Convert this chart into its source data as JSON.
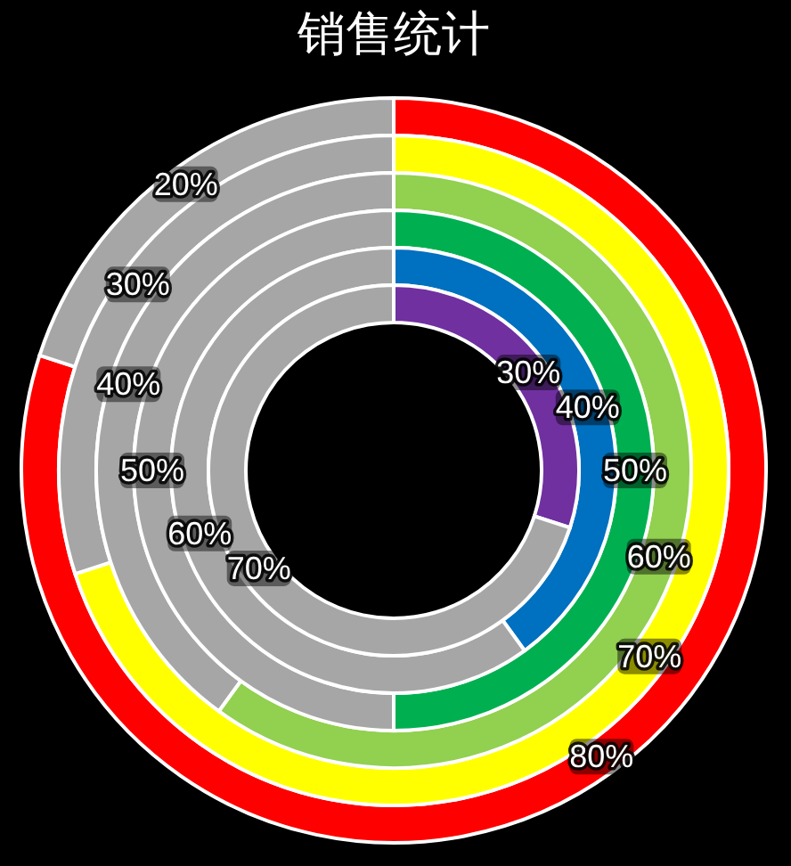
{
  "chart_data": [
    {
      "type": "donut",
      "title": "销售统计",
      "categories": [
        null,
        null
      ],
      "values": [
        80,
        20
      ],
      "colors": [
        "#ff0000",
        "#a6a6a6"
      ],
      "value_labels": [
        "80%",
        "20%"
      ]
    },
    {
      "type": "donut",
      "categories": [
        null,
        null
      ],
      "values": [
        70,
        30
      ],
      "colors": [
        "#ffff00",
        "#a6a6a6"
      ],
      "value_labels": [
        "70%",
        "30%"
      ]
    },
    {
      "type": "donut",
      "categories": [
        null,
        null
      ],
      "values": [
        60,
        40
      ],
      "colors": [
        "#92d050",
        "#a6a6a6"
      ],
      "value_labels": [
        "60%",
        "40%"
      ]
    },
    {
      "type": "donut",
      "categories": [
        null,
        null
      ],
      "values": [
        50,
        50
      ],
      "colors": [
        "#00b050",
        "#a6a6a6"
      ],
      "value_labels": [
        "50%",
        "50%"
      ]
    },
    {
      "type": "donut",
      "categories": [
        null,
        null
      ],
      "values": [
        40,
        60
      ],
      "colors": [
        "#0070c0",
        "#a6a6a6"
      ],
      "value_labels": [
        "40%",
        "60%"
      ]
    },
    {
      "type": "donut",
      "categories": [
        null,
        null
      ],
      "values": [
        30,
        70
      ],
      "colors": [
        "#7030a0",
        "#a6a6a6"
      ],
      "value_labels": [
        "30%",
        "70%"
      ]
    }
  ]
}
